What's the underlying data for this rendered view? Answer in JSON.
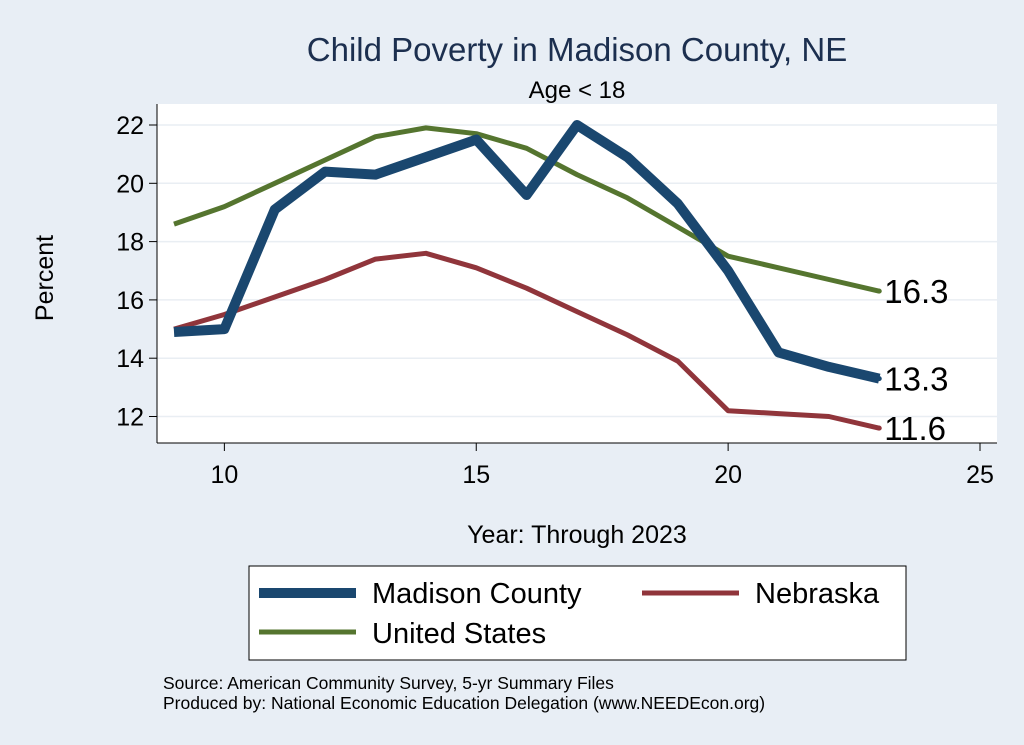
{
  "chart_data": {
    "type": "line",
    "title": "Child Poverty in Madison County, NE",
    "subtitle": "Age < 18",
    "xlabel": "Year: Through 2023",
    "ylabel": "Percent",
    "xlim": [
      9,
      25
    ],
    "ylim": [
      11,
      22.5
    ],
    "xticks": [
      10,
      15,
      20,
      25
    ],
    "yticks": [
      12,
      14,
      16,
      18,
      20,
      22
    ],
    "grid": true,
    "x": [
      9,
      10,
      11,
      12,
      13,
      14,
      15,
      16,
      17,
      18,
      19,
      20,
      21,
      22,
      23
    ],
    "series": [
      {
        "name": "Madison County",
        "color": "#1a476f",
        "values": [
          14.9,
          15.0,
          19.1,
          20.4,
          20.3,
          20.9,
          21.5,
          19.6,
          22.0,
          20.9,
          19.3,
          17.0,
          14.2,
          13.7,
          13.3
        ],
        "end_label": "13.3"
      },
      {
        "name": "Nebraska",
        "color": "#90353b",
        "values": [
          15.0,
          15.5,
          16.1,
          16.7,
          17.4,
          17.6,
          17.1,
          16.4,
          15.6,
          14.8,
          13.9,
          12.2,
          12.1,
          12.0,
          11.6
        ],
        "end_label": "11.6"
      },
      {
        "name": "United States",
        "color": "#55752f",
        "values": [
          18.6,
          19.2,
          20.0,
          20.8,
          21.6,
          21.9,
          21.7,
          21.2,
          20.3,
          19.5,
          18.5,
          17.5,
          17.1,
          16.7,
          16.3
        ],
        "end_label": "16.3"
      }
    ],
    "legend": {
      "position": "bottom",
      "entries": [
        "Madison County",
        "Nebraska",
        "United States"
      ]
    },
    "notes": [
      "Source: American Community Survey, 5-yr Summary Files",
      "Produced by: National Economic Education Delegation (www.NEEDEcon.org)"
    ]
  }
}
